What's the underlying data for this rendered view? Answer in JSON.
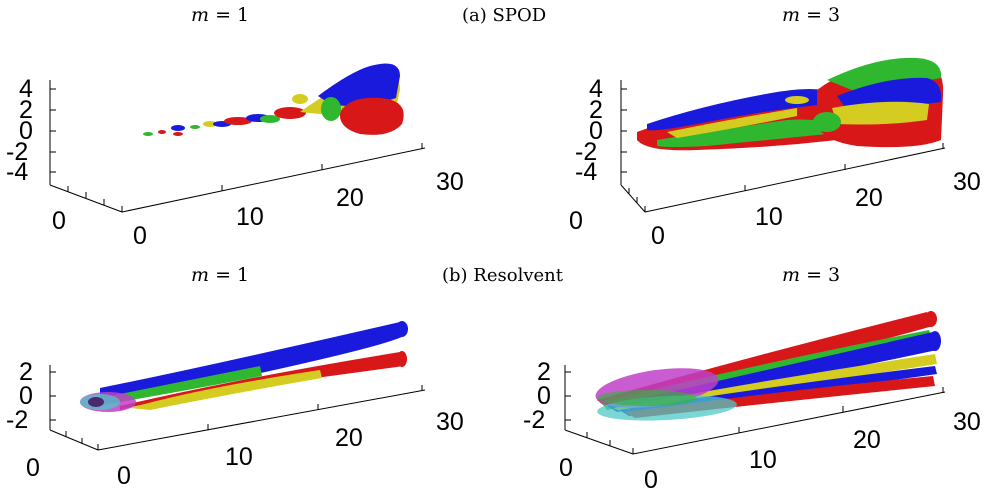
{
  "captions": {
    "spod": "(a) SPOD",
    "resolvent": "(b) Resolvent"
  },
  "mode_labels": {
    "var": "m",
    "eq": "= ",
    "p1": "1",
    "p3": "3"
  },
  "ticks": {
    "spod_z": [
      "4",
      "2",
      "0",
      "-2",
      "-4"
    ],
    "res_z": [
      "2",
      "0",
      "-2"
    ],
    "x": [
      "0",
      "10",
      "20",
      "30"
    ],
    "y": [
      "0"
    ]
  },
  "colors": {
    "blue": "#1a1adc",
    "red": "#d81818",
    "green": "#2fb82f",
    "yellow": "#d4cc20",
    "cyan": "#4fc8c8",
    "magenta": "#c040c8"
  }
}
